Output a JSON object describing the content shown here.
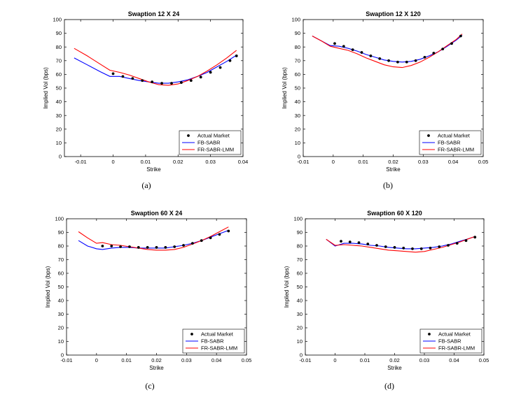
{
  "chart_data": [
    {
      "type": "line",
      "panel": "(a)",
      "title": "Swaption 12 X 24",
      "xlabel": "Strike",
      "ylabel": "Implied Vol (bps)",
      "xlim": [
        -0.015,
        0.04
      ],
      "ylim": [
        0,
        100
      ],
      "xticks": [
        -0.01,
        0,
        0.01,
        0.02,
        0.03,
        0.04
      ],
      "xtick_labels": [
        "-0.01",
        "0",
        "0.01",
        "0.02",
        "0.03",
        "0.04"
      ],
      "yticks": [
        0,
        10,
        20,
        30,
        40,
        50,
        60,
        70,
        80,
        90,
        100
      ],
      "legend_position": "bottom-right",
      "legend": [
        "Actual Market",
        "FB-SABR",
        "FR-SABR-LMM"
      ],
      "series": [
        {
          "name": "Actual Market",
          "marker": "dot",
          "color": "#000000",
          "x": [
            0.0,
            0.003,
            0.006,
            0.009,
            0.012,
            0.015,
            0.018,
            0.021,
            0.024,
            0.027,
            0.03,
            0.033,
            0.036,
            0.038
          ],
          "y": [
            60.5,
            58.5,
            57,
            55.5,
            54.5,
            53.5,
            53.5,
            54,
            55.5,
            58,
            61.5,
            65,
            70,
            73.5
          ]
        },
        {
          "name": "FB-SABR",
          "marker": "line",
          "color": "#0000ff",
          "x": [
            -0.012,
            -0.008,
            -0.004,
            -0.001,
            0.002,
            0.005,
            0.008,
            0.011,
            0.014,
            0.017,
            0.02,
            0.023,
            0.026,
            0.029,
            0.032,
            0.035,
            0.038
          ],
          "y": [
            72,
            67,
            62,
            58.5,
            58.5,
            57,
            55.5,
            54.5,
            53.5,
            53.5,
            54.5,
            56,
            58.5,
            61.5,
            65.5,
            69.5,
            74
          ]
        },
        {
          "name": "FR-SABR-LMM",
          "marker": "line",
          "color": "#ff0000",
          "x": [
            -0.012,
            -0.008,
            -0.004,
            -0.001,
            0.002,
            0.005,
            0.008,
            0.011,
            0.014,
            0.017,
            0.02,
            0.023,
            0.026,
            0.029,
            0.032,
            0.035,
            0.038
          ],
          "y": [
            79,
            73.5,
            67.5,
            63,
            61.5,
            59.5,
            57,
            54.5,
            52.5,
            52,
            53,
            55.5,
            58.5,
            62.5,
            67,
            72,
            77.5
          ]
        }
      ]
    },
    {
      "type": "line",
      "panel": "(b)",
      "title": "Swaption 12 X 120",
      "xlabel": "Strike",
      "ylabel": "Implied Vol (bps)",
      "xlim": [
        -0.01,
        0.05
      ],
      "ylim": [
        0,
        100
      ],
      "xticks": [
        -0.01,
        0,
        0.01,
        0.02,
        0.03,
        0.04,
        0.05
      ],
      "xtick_labels": [
        "-0.01",
        "0",
        "0.01",
        "0.02",
        "0.03",
        "0.04",
        "0.05"
      ],
      "yticks": [
        0,
        10,
        20,
        30,
        40,
        50,
        60,
        70,
        80,
        90,
        100
      ],
      "legend_position": "bottom-right",
      "legend": [
        "Actual Market",
        "FB-SABR",
        "FR-SABR-LMM"
      ],
      "series": [
        {
          "name": "Actual Market",
          "marker": "dot",
          "color": "#000000",
          "x": [
            0.0005,
            0.0035,
            0.0065,
            0.0095,
            0.0125,
            0.0155,
            0.0185,
            0.0215,
            0.0245,
            0.0275,
            0.0305,
            0.0335,
            0.0365,
            0.0395,
            0.0425
          ],
          "y": [
            82.5,
            80.5,
            78,
            76,
            73.5,
            71.5,
            70,
            69,
            69,
            70,
            72.5,
            75.5,
            78.5,
            82.5,
            88
          ]
        },
        {
          "name": "FB-SABR",
          "marker": "line",
          "color": "#0000ff",
          "x": [
            -0.007,
            -0.004,
            -0.001,
            0.002,
            0.005,
            0.008,
            0.011,
            0.014,
            0.017,
            0.02,
            0.023,
            0.026,
            0.029,
            0.032,
            0.035,
            0.038,
            0.041,
            0.043
          ],
          "y": [
            88,
            84.5,
            81,
            80.5,
            79,
            77,
            74.5,
            72.5,
            70.5,
            69.5,
            69,
            69.5,
            71,
            73.5,
            76.5,
            80.5,
            85,
            88.5
          ]
        },
        {
          "name": "FR-SABR-LMM",
          "marker": "line",
          "color": "#ff0000",
          "x": [
            -0.007,
            -0.004,
            -0.001,
            0.002,
            0.005,
            0.008,
            0.011,
            0.014,
            0.017,
            0.02,
            0.023,
            0.026,
            0.029,
            0.032,
            0.035,
            0.038,
            0.041,
            0.043
          ],
          "y": [
            88,
            84.5,
            80.5,
            79,
            77.5,
            75,
            72,
            69.5,
            67,
            65.5,
            65,
            66.5,
            69,
            72.5,
            76.5,
            81,
            85.5,
            89.5
          ]
        }
      ]
    },
    {
      "type": "line",
      "panel": "(c)",
      "title": "Swaption 60 X 24",
      "xlabel": "Strike",
      "ylabel": "Implied Vol (bps)",
      "xlim": [
        -0.01,
        0.05
      ],
      "ylim": [
        0,
        100
      ],
      "xticks": [
        -0.01,
        0,
        0.01,
        0.02,
        0.03,
        0.04,
        0.05
      ],
      "xtick_labels": [
        "-0.01",
        "0",
        "0.01",
        "0.02",
        "0.03",
        "0.04",
        "0.05"
      ],
      "yticks": [
        0,
        10,
        20,
        30,
        40,
        50,
        60,
        70,
        80,
        90,
        100
      ],
      "legend_position": "bottom-right",
      "legend": [
        "Actual Market",
        "FB-SABR",
        "FR-SABR-LMM"
      ],
      "series": [
        {
          "name": "Actual Market",
          "marker": "dot",
          "color": "#000000",
          "x": [
            0.002,
            0.005,
            0.008,
            0.011,
            0.014,
            0.017,
            0.02,
            0.023,
            0.026,
            0.029,
            0.032,
            0.035,
            0.038,
            0.041,
            0.044
          ],
          "y": [
            80,
            80,
            79.5,
            79.5,
            79,
            79,
            79,
            79,
            79.5,
            80.5,
            82,
            84,
            86,
            88.5,
            91
          ]
        },
        {
          "name": "FB-SABR",
          "marker": "line",
          "color": "#0000ff",
          "x": [
            -0.006,
            -0.003,
            0.0,
            0.002,
            0.005,
            0.008,
            0.011,
            0.014,
            0.017,
            0.02,
            0.023,
            0.026,
            0.029,
            0.032,
            0.035,
            0.038,
            0.041,
            0.044
          ],
          "y": [
            84,
            80,
            78,
            77.5,
            78.5,
            79,
            79,
            78.5,
            78.5,
            78.5,
            78.5,
            79.5,
            80.5,
            82,
            84,
            86.5,
            89,
            91.5
          ]
        },
        {
          "name": "FR-SABR-LMM",
          "marker": "line",
          "color": "#ff0000",
          "x": [
            -0.006,
            -0.003,
            0.0,
            0.002,
            0.005,
            0.008,
            0.011,
            0.014,
            0.017,
            0.02,
            0.023,
            0.026,
            0.029,
            0.032,
            0.035,
            0.038,
            0.041,
            0.044
          ],
          "y": [
            90.5,
            86,
            82,
            82.5,
            81,
            80.5,
            79.5,
            78.5,
            77.5,
            77,
            77,
            77.5,
            79,
            81.5,
            84,
            87,
            90.5,
            94
          ]
        }
      ]
    },
    {
      "type": "line",
      "panel": "(d)",
      "title": "Swaption 60 X 120",
      "xlabel": "Strike",
      "ylabel": "Implied Vol (bps)",
      "xlim": [
        -0.01,
        0.05
      ],
      "ylim": [
        0,
        100
      ],
      "xticks": [
        -0.01,
        0,
        0.01,
        0.02,
        0.03,
        0.04,
        0.05
      ],
      "xtick_labels": [
        "-0.01",
        "0",
        "0.01",
        "0.02",
        "0.03",
        "0.04",
        "0.05"
      ],
      "yticks": [
        0,
        10,
        20,
        30,
        40,
        50,
        60,
        70,
        80,
        90,
        100
      ],
      "legend_position": "bottom-right",
      "legend": [
        "Actual Market",
        "FB-SABR",
        "FR-SABR-LMM"
      ],
      "series": [
        {
          "name": "Actual Market",
          "marker": "dot",
          "color": "#000000",
          "x": [
            0.002,
            0.005,
            0.008,
            0.011,
            0.014,
            0.017,
            0.02,
            0.023,
            0.026,
            0.029,
            0.032,
            0.035,
            0.038,
            0.041,
            0.044,
            0.047
          ],
          "y": [
            83.5,
            83,
            82.5,
            81.5,
            80.5,
            79.5,
            79,
            78.5,
            78,
            78,
            78.5,
            79.5,
            80.5,
            82,
            84,
            86.5
          ]
        },
        {
          "name": "FB-SABR",
          "marker": "line",
          "color": "#0000ff",
          "x": [
            -0.003,
            0.0,
            0.003,
            0.006,
            0.009,
            0.012,
            0.015,
            0.018,
            0.021,
            0.024,
            0.027,
            0.03,
            0.033,
            0.036,
            0.039,
            0.042,
            0.045,
            0.047
          ],
          "y": [
            85,
            80,
            82,
            82,
            81.5,
            80.5,
            80,
            79,
            78.5,
            78,
            78,
            78.5,
            79,
            80,
            81.5,
            83.5,
            85.5,
            87
          ]
        },
        {
          "name": "FR-SABR-LMM",
          "marker": "line",
          "color": "#ff0000",
          "x": [
            -0.003,
            0.0,
            0.003,
            0.006,
            0.009,
            0.012,
            0.015,
            0.018,
            0.021,
            0.024,
            0.027,
            0.03,
            0.033,
            0.036,
            0.039,
            0.042,
            0.045,
            0.047
          ],
          "y": [
            85,
            80.5,
            81,
            80.5,
            80,
            79,
            78,
            77,
            76.5,
            76,
            75.5,
            76,
            77.5,
            79,
            81,
            83,
            85.5,
            87
          ]
        }
      ]
    }
  ]
}
